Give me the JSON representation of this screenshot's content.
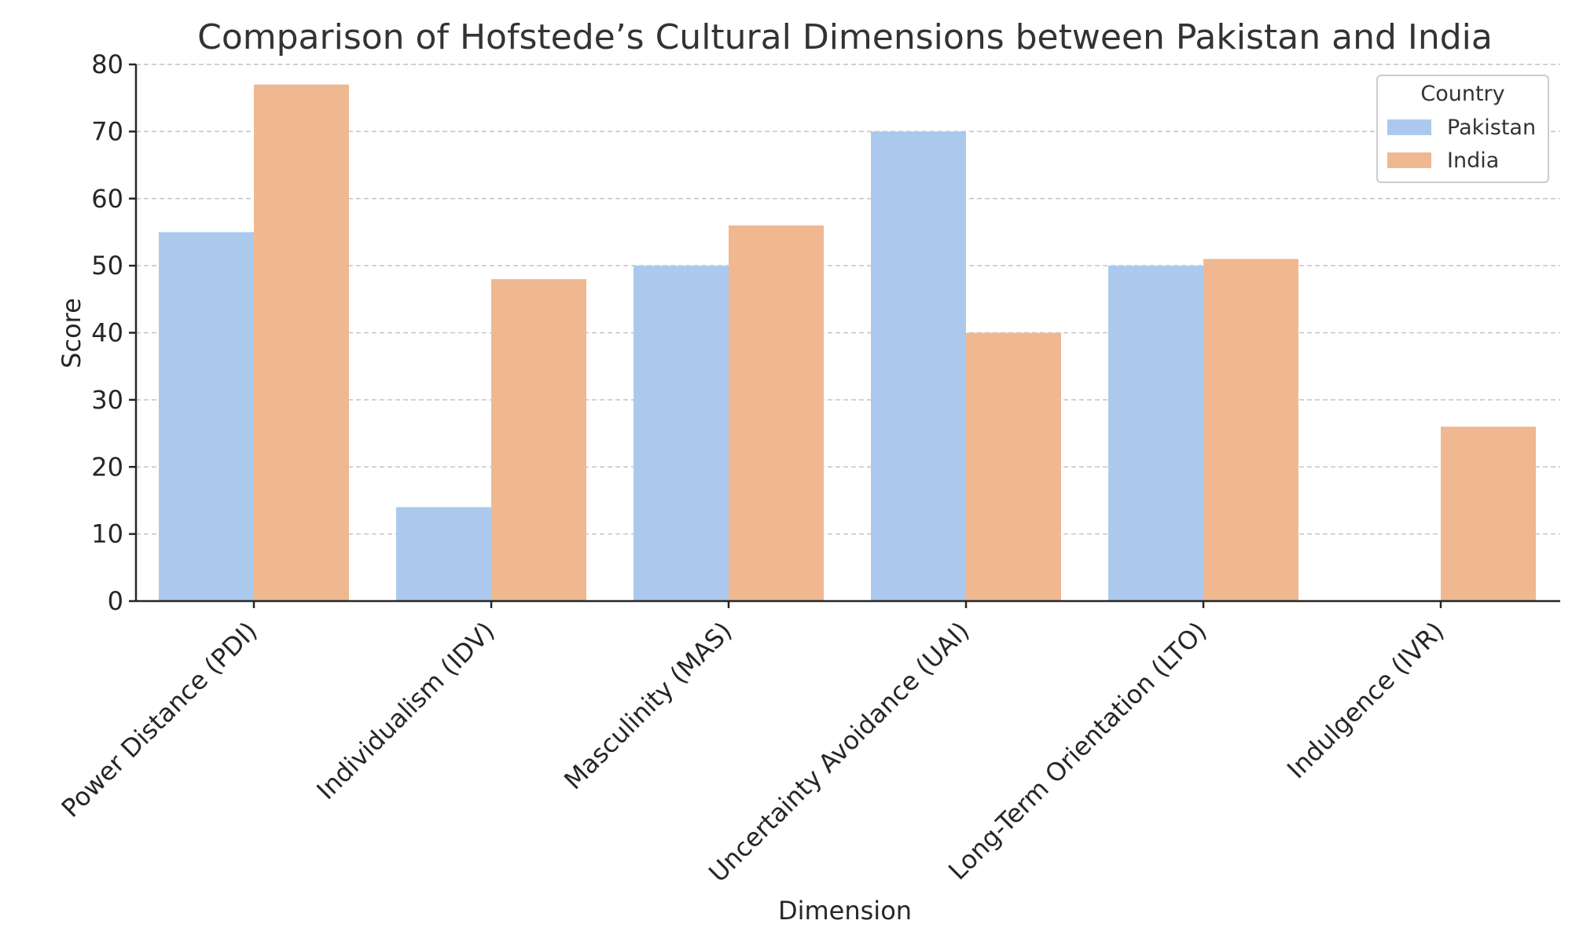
{
  "chart_data": {
    "type": "bar",
    "title": "Comparison of Hofstede’s Cultural Dimensions between Pakistan and India",
    "xlabel": "Dimension",
    "ylabel": "Score",
    "categories": [
      "Power Distance (PDI)",
      "Individualism (IDV)",
      "Masculinity (MAS)",
      "Uncertainty Avoidance (UAI)",
      "Long-Term Orientation (LTO)",
      "Indulgence (IVR)"
    ],
    "series": [
      {
        "name": "Pakistan",
        "color": "#abc9ed",
        "values": [
          55,
          14,
          50,
          70,
          50,
          0
        ]
      },
      {
        "name": "India",
        "color": "#f0b891",
        "values": [
          77,
          48,
          56,
          40,
          51,
          26
        ]
      }
    ],
    "ylim": [
      0,
      80
    ],
    "yticks": [
      0,
      10,
      20,
      30,
      40,
      50,
      60,
      70,
      80
    ],
    "grid": true,
    "legend": {
      "title": "Country",
      "position": "top-right"
    }
  }
}
